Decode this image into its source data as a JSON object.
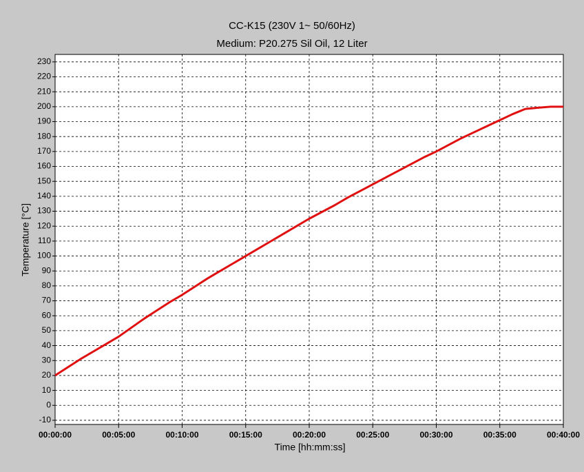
{
  "chart_data": {
    "type": "line",
    "title": "CC-K15 (230V 1~ 50/60Hz)",
    "subtitle": "Medium: P20.275 Sil Oil, 12 Liter",
    "x_label": "Time [hh:mm:ss]",
    "y_label": "Temperature [°C]",
    "x": [
      0,
      1,
      2,
      3,
      4,
      5,
      6,
      7,
      8,
      9,
      10,
      11,
      12,
      13,
      14,
      15,
      16,
      17,
      18,
      19,
      20,
      21,
      22,
      23,
      24,
      25,
      26,
      27,
      28,
      29,
      30,
      31,
      32,
      33,
      34,
      35,
      36,
      37,
      38,
      39,
      40
    ],
    "series": [
      {
        "name": "Temperature",
        "color": "#e01010",
        "values": [
          20,
          25.5,
          31,
          36,
          41,
          46,
          52,
          58,
          63.5,
          69,
          74,
          79.5,
          85,
          90,
          95,
          100,
          105,
          110,
          115,
          120,
          125,
          129.5,
          134,
          139,
          143.5,
          148,
          152.5,
          157,
          161.5,
          166,
          170,
          174.5,
          179,
          183,
          187,
          191,
          195,
          198.5,
          199.3,
          200,
          200
        ]
      }
    ],
    "xlim": [
      0,
      40
    ],
    "xticks": [
      {
        "value": 0,
        "label": "00:00:00"
      },
      {
        "value": 5,
        "label": "00:05:00"
      },
      {
        "value": 10,
        "label": "00:10:00"
      },
      {
        "value": 15,
        "label": "00:15:00"
      },
      {
        "value": 20,
        "label": "00:20:00"
      },
      {
        "value": 25,
        "label": "00:25:00"
      },
      {
        "value": 30,
        "label": "00:30:00"
      },
      {
        "value": 35,
        "label": "00:35:00"
      },
      {
        "value": 40,
        "label": "00:40:00"
      }
    ],
    "ylim": [
      -12.8,
      235
    ],
    "yticks": [
      -10,
      0,
      10,
      20,
      30,
      40,
      50,
      60,
      70,
      80,
      90,
      100,
      110,
      120,
      130,
      140,
      150,
      160,
      170,
      180,
      190,
      200,
      210,
      220,
      230
    ],
    "grid": true
  }
}
